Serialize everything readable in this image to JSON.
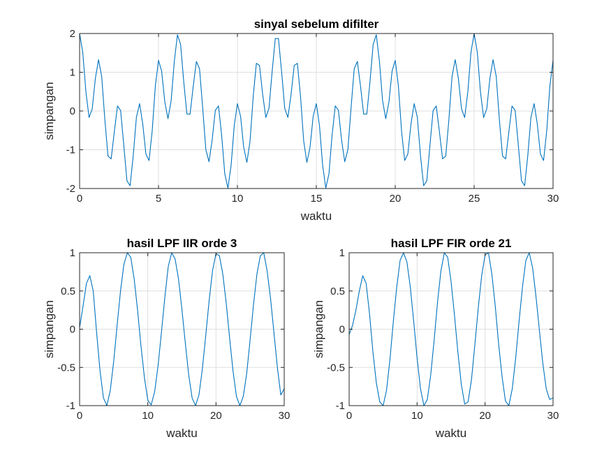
{
  "figure": {
    "background": "#ffffff",
    "series_color": "#0072bd"
  },
  "chart_data": [
    {
      "type": "line",
      "title": "sinyal sebelum difilter",
      "xlabel": "waktu",
      "ylabel": "simpangan",
      "xlim": [
        0,
        30
      ],
      "ylim": [
        -2,
        2
      ],
      "xticks": [
        0,
        5,
        10,
        15,
        20,
        25,
        30
      ],
      "yticks": [
        -2,
        -1,
        0,
        1,
        2
      ],
      "xticklabels": [
        "0",
        "5",
        "10",
        "15",
        "20",
        "25",
        "30"
      ],
      "yticklabels": [
        "-2",
        "-1",
        "0",
        "1",
        "2"
      ],
      "grid": true,
      "sampling_step": 0.2,
      "x_range": [
        0,
        30
      ],
      "series": [
        {
          "components": [
            {
              "amplitude": 1,
              "frequency_hz": 0.16,
              "phase_rad": 1.5708
            },
            {
              "amplitude": 1,
              "frequency_hz": 0.8,
              "phase_rad": 1.5708
            }
          ]
        }
      ]
    },
    {
      "type": "line",
      "title": "hasil LPF IIR orde 3",
      "xlabel": "waktu",
      "ylabel": "simpangan",
      "xlim": [
        0,
        30
      ],
      "ylim": [
        -1,
        1
      ],
      "xticks": [
        0,
        10,
        20,
        30
      ],
      "yticks": [
        -1,
        -0.5,
        0,
        0.5,
        1
      ],
      "xticklabels": [
        "0",
        "10",
        "20",
        "30"
      ],
      "yticklabels": [
        "-1",
        "-0.5",
        "0",
        "0.5",
        "1"
      ],
      "grid": true,
      "sampling_step": 0.2,
      "x_range": [
        0,
        30
      ],
      "series": [
        {
          "x": [
            0,
            0.5,
            1.0,
            1.5,
            2.0,
            2.5,
            3.0,
            3.5,
            4.0,
            4.5,
            5.0,
            5.5,
            6.0,
            6.5,
            7.0,
            7.5,
            8.0,
            8.5,
            9.0,
            9.5,
            10.0,
            10.5,
            11.0,
            11.5,
            12.0,
            12.5,
            13.0,
            13.5,
            14.0,
            14.5,
            15.0,
            15.5,
            16.0,
            16.5,
            17.0,
            17.5,
            18.0,
            18.5,
            19.0,
            19.5,
            20.0,
            20.5,
            21.0,
            21.5,
            22.0,
            22.5,
            23.0,
            23.5,
            24.0,
            24.5,
            25.0,
            25.5,
            26.0,
            26.5,
            27.0,
            27.5,
            28.0,
            28.5,
            29.0,
            29.5,
            30.0
          ],
          "values": [
            0.02,
            0.3,
            0.6,
            0.7,
            0.5,
            -0.05,
            -0.55,
            -0.9,
            -1.0,
            -0.8,
            -0.42,
            0.05,
            0.5,
            0.85,
            1.0,
            0.94,
            0.66,
            0.25,
            -0.22,
            -0.63,
            -0.93,
            -0.99,
            -0.82,
            -0.48,
            -0.04,
            0.42,
            0.82,
            1.0,
            0.92,
            0.66,
            0.26,
            -0.18,
            -0.6,
            -0.9,
            -1.0,
            -0.86,
            -0.52,
            -0.08,
            0.38,
            0.77,
            0.99,
            0.96,
            0.72,
            0.34,
            -0.12,
            -0.55,
            -0.88,
            -1.0,
            -0.88,
            -0.58,
            -0.14,
            0.32,
            0.72,
            0.96,
            1.0,
            0.76,
            0.4,
            -0.05,
            -0.5,
            -0.86,
            -0.78
          ]
        }
      ]
    },
    {
      "type": "line",
      "title": "hasil LPF FIR orde 21",
      "xlabel": "waktu",
      "ylabel": "simpangan",
      "xlim": [
        0,
        30
      ],
      "ylim": [
        -1,
        1
      ],
      "xticks": [
        0,
        10,
        20,
        30
      ],
      "yticks": [
        -1,
        -0.5,
        0,
        0.5,
        1
      ],
      "xticklabels": [
        "0",
        "10",
        "20",
        "30"
      ],
      "yticklabels": [
        "-1",
        "-0.5",
        "0",
        "0.5",
        "1"
      ],
      "grid": true,
      "sampling_step": 0.2,
      "x_range": [
        0,
        30
      ],
      "series": [
        {
          "x": [
            0,
            0.5,
            1.0,
            1.5,
            2.0,
            2.5,
            3.0,
            3.5,
            4.0,
            4.5,
            5.0,
            5.5,
            6.0,
            6.5,
            7.0,
            7.5,
            8.0,
            8.5,
            9.0,
            9.5,
            10.0,
            10.5,
            11.0,
            11.5,
            12.0,
            12.5,
            13.0,
            13.5,
            14.0,
            14.5,
            15.0,
            15.5,
            16.0,
            16.5,
            17.0,
            17.5,
            18.0,
            18.5,
            19.0,
            19.5,
            20.0,
            20.5,
            21.0,
            21.5,
            22.0,
            22.5,
            23.0,
            23.5,
            24.0,
            24.5,
            25.0,
            25.5,
            26.0,
            26.5,
            27.0,
            27.5,
            28.0,
            28.5,
            29.0,
            29.5,
            30.0
          ],
          "values": [
            -0.07,
            0.05,
            0.25,
            0.5,
            0.7,
            0.6,
            0.2,
            -0.3,
            -0.7,
            -0.95,
            -1.0,
            -0.8,
            -0.4,
            0.1,
            0.55,
            0.9,
            1.0,
            0.88,
            0.55,
            0.1,
            -0.38,
            -0.78,
            -1.0,
            -0.92,
            -0.6,
            -0.15,
            0.35,
            0.76,
            1.0,
            0.94,
            0.62,
            0.18,
            -0.3,
            -0.72,
            -0.98,
            -0.95,
            -0.66,
            -0.2,
            0.28,
            0.7,
            0.97,
            1.0,
            0.72,
            0.3,
            -0.2,
            -0.62,
            -0.94,
            -1.0,
            -0.78,
            -0.38,
            0.1,
            0.55,
            0.9,
            1.0,
            0.8,
            0.42,
            -0.02,
            -0.45,
            -0.78,
            -0.92,
            -0.9
          ]
        }
      ]
    }
  ]
}
